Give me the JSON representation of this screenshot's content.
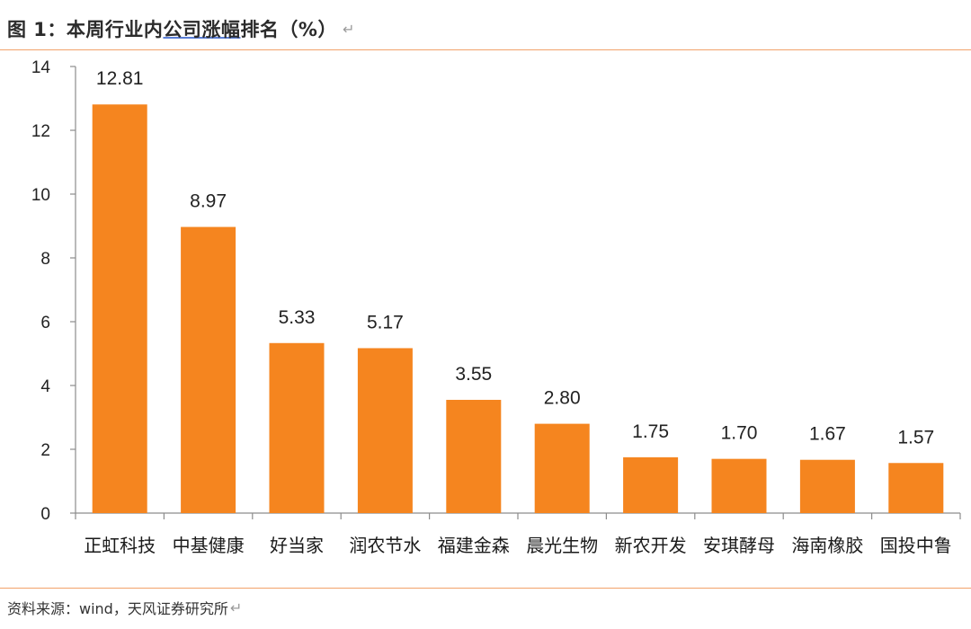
{
  "figure": {
    "title_prefix": "图 1：本周行业内",
    "title_underlined": "公司涨幅",
    "title_suffix": "排名（%）",
    "return_mark": "↵",
    "source": "资料来源：wind，天风证券研究所"
  },
  "chart_data": {
    "type": "bar",
    "title": "图 1：本周行业内公司涨幅排名（%）",
    "categories": [
      "正虹科技",
      "中基健康",
      "好当家",
      "润农节水",
      "福建金森",
      "晨光生物",
      "新农开发",
      "安琪酵母",
      "海南橡胶",
      "国投中鲁"
    ],
    "values": [
      12.81,
      8.97,
      5.33,
      5.17,
      3.55,
      2.8,
      1.75,
      1.7,
      1.67,
      1.57
    ],
    "value_labels": [
      "12.81",
      "8.97",
      "5.33",
      "5.17",
      "3.55",
      "2.80",
      "1.75",
      "1.70",
      "1.67",
      "1.57"
    ],
    "ylim": [
      0,
      14
    ],
    "yticks": [
      "0",
      "2",
      "4",
      "6",
      "8",
      "10",
      "12",
      "14"
    ],
    "xlabel": "",
    "ylabel": "",
    "grid": false,
    "legend": "none",
    "bar_color": "#f5851f",
    "axis_color": "#8c8c8c"
  }
}
